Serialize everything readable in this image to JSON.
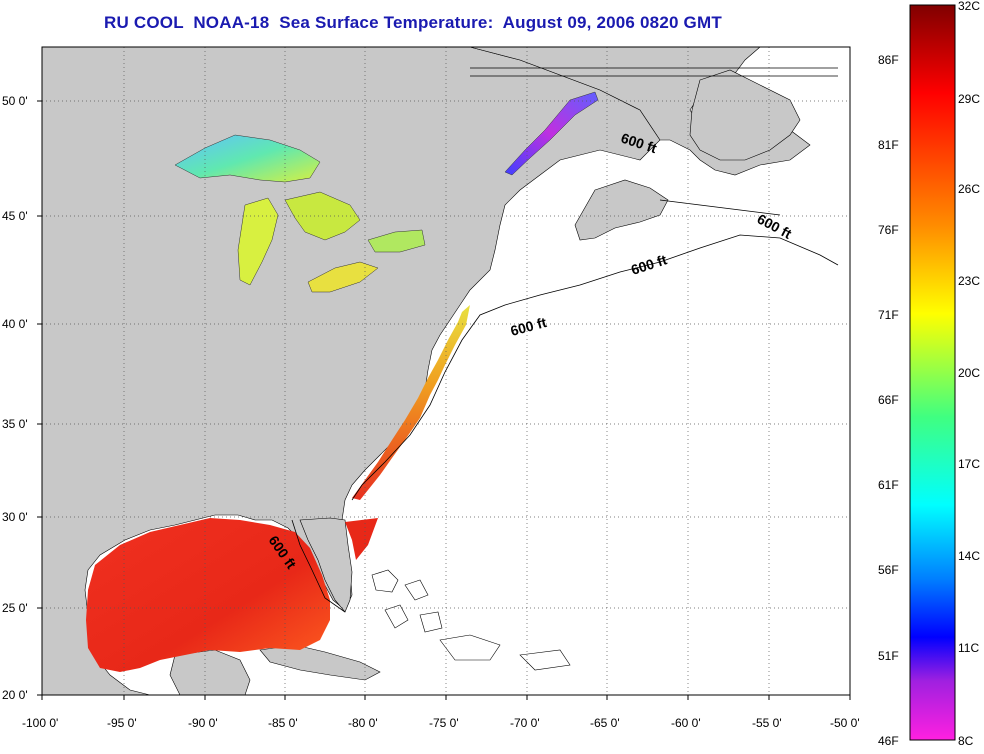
{
  "title": "RU COOL  NOAA-18  Sea Surface Temperature:  August 09, 2006 0820 GMT",
  "axes": {
    "lat_labels": [
      "20 0'",
      "25 0'",
      "30 0'",
      "35 0'",
      "40 0'",
      "45 0'",
      "50 0'"
    ],
    "lon_labels": [
      "-100 0'",
      "-95 0'",
      "-90 0'",
      "-85 0'",
      "-80 0'",
      "-75 0'",
      "-70 0'",
      "-65 0'",
      "-60 0'",
      "-55 0'",
      "-50 0'"
    ]
  },
  "isobath_labels": [
    "600 ft",
    "600 ft",
    "600 ft",
    "600 ft",
    "600 ft"
  ],
  "colorbar": {
    "celsius_labels": [
      "32C",
      "29C",
      "26C",
      "23C",
      "20C",
      "17C",
      "14C",
      "11C",
      "8C"
    ],
    "fahrenheit_labels": [
      "86F",
      "81F",
      "76F",
      "71F",
      "66F",
      "61F",
      "56F",
      "51F",
      "46F"
    ]
  },
  "colors": {
    "land": "#c8c8c8",
    "ocean": "#ffffff",
    "title": "#1a1ab0",
    "sst_warm": "#e8281c",
    "sst_mid": "#c8e040",
    "sst_cool": "#40d0c0"
  }
}
